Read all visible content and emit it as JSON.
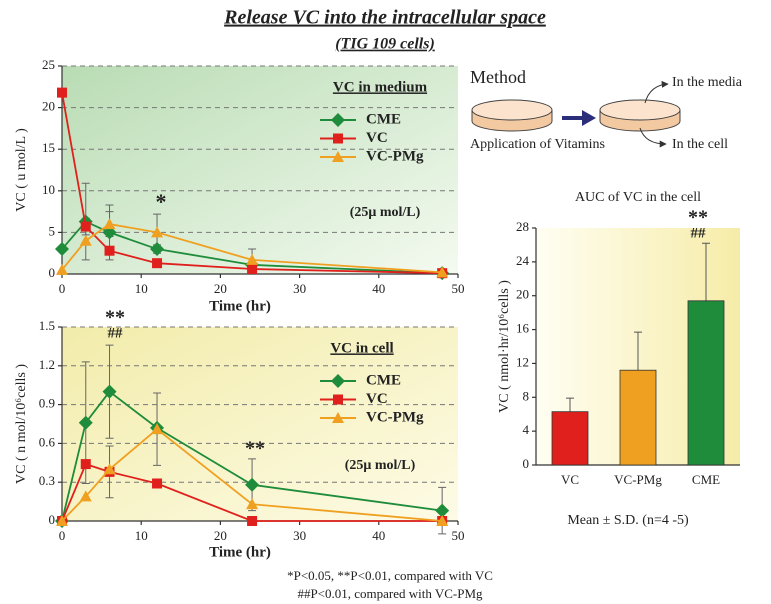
{
  "title": "Release VC into the intracellular space",
  "subtitle": "(TIG 109 cells)",
  "method": {
    "heading": "Method",
    "application": "Application of Vitamins",
    "media": "In the media",
    "cell": "In the cell"
  },
  "footnotes": [
    "*P<0.05, **P<0.01, compared with VC",
    "##P<0.01, compared with VC-PMg"
  ],
  "chart_data": [
    {
      "type": "line",
      "title": "VC in medium",
      "x_label": "Time (hr)",
      "y_label": "VC ( u mol/L )",
      "x": [
        0,
        3,
        6,
        12,
        24,
        48
      ],
      "xlim": [
        0,
        50
      ],
      "xticks": [
        0,
        10,
        20,
        30,
        40,
        50
      ],
      "ylim": [
        0,
        25
      ],
      "yticks": [
        0,
        5,
        10,
        15,
        20,
        25
      ],
      "grid": true,
      "legend": "upper right",
      "annotations": [
        "(25μ mol/L)",
        "*"
      ],
      "series": [
        {
          "name": "CME",
          "color": "#1e8c3a",
          "marker": "diamond",
          "values": [
            3.0,
            6.3,
            5.0,
            3.0,
            1.1,
            0.1
          ],
          "errors": [
            null,
            4.6,
            3.3,
            0.5,
            null,
            null
          ]
        },
        {
          "name": "VC",
          "color": "#e0201c",
          "marker": "square",
          "values": [
            21.8,
            5.7,
            2.8,
            1.3,
            0.6,
            0.1
          ],
          "errors": [
            null,
            1.0,
            null,
            null,
            null,
            null
          ]
        },
        {
          "name": "VC-PMg",
          "color": "#f0a020",
          "marker": "triangle",
          "values": [
            0.5,
            4.0,
            6.0,
            5.0,
            1.7,
            0.2
          ],
          "errors": [
            null,
            null,
            1.5,
            2.2,
            1.3,
            null
          ]
        }
      ]
    },
    {
      "type": "line",
      "title": "VC in cell",
      "x_label": "Time (hr)",
      "y_label": "VC ( n mol/10⁶cells )",
      "x": [
        0,
        3,
        6,
        12,
        24,
        48
      ],
      "xlim": [
        0,
        50
      ],
      "xticks": [
        0,
        10,
        20,
        30,
        40,
        50
      ],
      "ylim": [
        0,
        1.5
      ],
      "yticks": [
        0,
        0.3,
        0.6,
        0.9,
        1.2,
        1.5
      ],
      "grid": true,
      "legend": "upper right",
      "annotations": [
        "**",
        "##",
        "**",
        "(25μ mol/L)"
      ],
      "series": [
        {
          "name": "CME",
          "color": "#1e8c3a",
          "marker": "diamond",
          "values": [
            0.0,
            0.76,
            1.0,
            0.72,
            0.28,
            0.08
          ],
          "errors": [
            null,
            0.47,
            0.36,
            null,
            0.2,
            0.18
          ]
        },
        {
          "name": "VC",
          "color": "#e0201c",
          "marker": "square",
          "values": [
            0.0,
            0.44,
            0.38,
            0.29,
            0.0,
            0.0
          ],
          "errors": [
            null,
            null,
            0.2,
            null,
            null,
            null
          ]
        },
        {
          "name": "VC-PMg",
          "color": "#f0a020",
          "marker": "triangle",
          "values": [
            0.0,
            0.19,
            0.4,
            0.71,
            0.13,
            0.0
          ],
          "errors": [
            null,
            null,
            null,
            0.28,
            null,
            null
          ]
        }
      ]
    },
    {
      "type": "bar",
      "title": "AUC of VC in the cell",
      "y_label": "VC ( nmol·hr/10⁶cells )",
      "categories": [
        "VC",
        "VC-PMg",
        "CME"
      ],
      "values": [
        6.3,
        11.2,
        19.4
      ],
      "errors": [
        1.6,
        4.5,
        6.8
      ],
      "colors": [
        "#e0201c",
        "#f0a020",
        "#1e8c3a"
      ],
      "ylim": [
        0,
        28
      ],
      "yticks": [
        0,
        4,
        8,
        12,
        16,
        20,
        24,
        28
      ],
      "grid": false,
      "annotations": [
        "**",
        "##"
      ],
      "note": "Mean ± S.D. (n=4 -5)"
    }
  ]
}
